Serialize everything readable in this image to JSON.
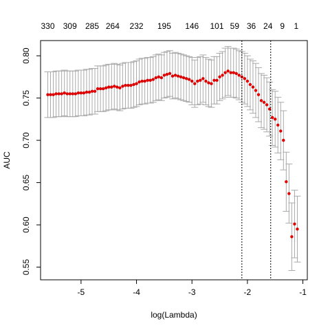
{
  "chart_data": {
    "type": "scatter",
    "title": "",
    "xlabel": "log(Lambda)",
    "ylabel": "AUC",
    "xlim": [
      -5.73,
      -0.92
    ],
    "ylim": [
      0.535,
      0.818
    ],
    "x_ticks": [
      -5,
      -4,
      -3,
      -2,
      -1
    ],
    "y_ticks": [
      0.55,
      0.6,
      0.65,
      0.7,
      0.75,
      0.8
    ],
    "x_tick_labels": [
      "-5",
      "-4",
      "-3",
      "-2",
      "-1"
    ],
    "y_tick_labels": [
      "0.55",
      "0.60",
      "0.65",
      "0.70",
      "0.75",
      "0.80"
    ],
    "top_axis": {
      "x": [
        -5.6,
        -5.2,
        -4.8,
        -4.43,
        -4.0,
        -3.5,
        -3.0,
        -2.55,
        -2.23,
        -1.93,
        -1.63,
        -1.37,
        -1.12
      ],
      "labels": [
        "330",
        "309",
        "285",
        "264",
        "232",
        "195",
        "146",
        "101",
        "59",
        "36",
        "24",
        "9",
        "1"
      ]
    },
    "vlines": [
      -2.1,
      -1.58
    ],
    "grid": false,
    "point_color": "#dd0000",
    "error_bar_color": "#a9a9a9",
    "series": [
      {
        "x": [
          -5.6,
          -5.55,
          -5.5,
          -5.45,
          -5.4,
          -5.35,
          -5.3,
          -5.25,
          -5.2,
          -5.15,
          -5.1,
          -5.05,
          -5.0,
          -4.95,
          -4.9,
          -4.85,
          -4.8,
          -4.75,
          -4.7,
          -4.65,
          -4.6,
          -4.55,
          -4.5,
          -4.45,
          -4.4,
          -4.35,
          -4.3,
          -4.25,
          -4.2,
          -4.15,
          -4.1,
          -4.05,
          -4.0,
          -3.95,
          -3.9,
          -3.85,
          -3.8,
          -3.75,
          -3.7,
          -3.65,
          -3.6,
          -3.55,
          -3.5,
          -3.45,
          -3.4,
          -3.35,
          -3.3,
          -3.25,
          -3.2,
          -3.15,
          -3.1,
          -3.05,
          -3.0,
          -2.95,
          -2.9,
          -2.85,
          -2.8,
          -2.75,
          -2.7,
          -2.65,
          -2.6,
          -2.55,
          -2.5,
          -2.45,
          -2.4,
          -2.35,
          -2.3,
          -2.25,
          -2.2,
          -2.15,
          -2.1,
          -2.05,
          -2.0,
          -1.95,
          -1.9,
          -1.85,
          -1.8,
          -1.75,
          -1.7,
          -1.65,
          -1.6,
          -1.55,
          -1.5,
          -1.45,
          -1.4,
          -1.35,
          -1.3,
          -1.25,
          -1.2,
          -1.15,
          -1.1
        ],
        "y": [
          0.754,
          0.754,
          0.754,
          0.755,
          0.755,
          0.755,
          0.756,
          0.755,
          0.755,
          0.755,
          0.755,
          0.756,
          0.756,
          0.756,
          0.757,
          0.757,
          0.758,
          0.758,
          0.761,
          0.761,
          0.761,
          0.762,
          0.763,
          0.763,
          0.764,
          0.763,
          0.762,
          0.764,
          0.765,
          0.765,
          0.765,
          0.766,
          0.767,
          0.769,
          0.77,
          0.77,
          0.771,
          0.771,
          0.772,
          0.774,
          0.775,
          0.774,
          0.777,
          0.778,
          0.779,
          0.776,
          0.777,
          0.776,
          0.775,
          0.774,
          0.773,
          0.772,
          0.77,
          0.767,
          0.77,
          0.771,
          0.773,
          0.77,
          0.768,
          0.767,
          0.771,
          0.771,
          0.775,
          0.777,
          0.78,
          0.782,
          0.78,
          0.78,
          0.779,
          0.777,
          0.775,
          0.773,
          0.77,
          0.766,
          0.763,
          0.759,
          0.754,
          0.747,
          0.745,
          0.742,
          0.737,
          0.727,
          0.725,
          0.718,
          0.711,
          0.7,
          0.651,
          0.637,
          0.586,
          0.601,
          0.595
        ],
        "err": [
          0.027,
          0.027,
          0.027,
          0.027,
          0.027,
          0.027,
          0.027,
          0.027,
          0.027,
          0.027,
          0.027,
          0.027,
          0.027,
          0.027,
          0.027,
          0.027,
          0.027,
          0.027,
          0.027,
          0.027,
          0.027,
          0.027,
          0.027,
          0.027,
          0.027,
          0.027,
          0.027,
          0.027,
          0.027,
          0.027,
          0.027,
          0.027,
          0.027,
          0.027,
          0.027,
          0.027,
          0.027,
          0.027,
          0.027,
          0.027,
          0.027,
          0.027,
          0.027,
          0.027,
          0.027,
          0.027,
          0.027,
          0.027,
          0.027,
          0.027,
          0.027,
          0.027,
          0.028,
          0.028,
          0.028,
          0.028,
          0.028,
          0.028,
          0.028,
          0.028,
          0.028,
          0.028,
          0.028,
          0.028,
          0.029,
          0.029,
          0.029,
          0.029,
          0.029,
          0.029,
          0.03,
          0.03,
          0.03,
          0.03,
          0.031,
          0.032,
          0.032,
          0.032,
          0.032,
          0.032,
          0.032,
          0.033,
          0.033,
          0.033,
          0.034,
          0.035,
          0.035,
          0.035,
          0.04,
          0.04,
          0.039
        ]
      }
    ]
  }
}
